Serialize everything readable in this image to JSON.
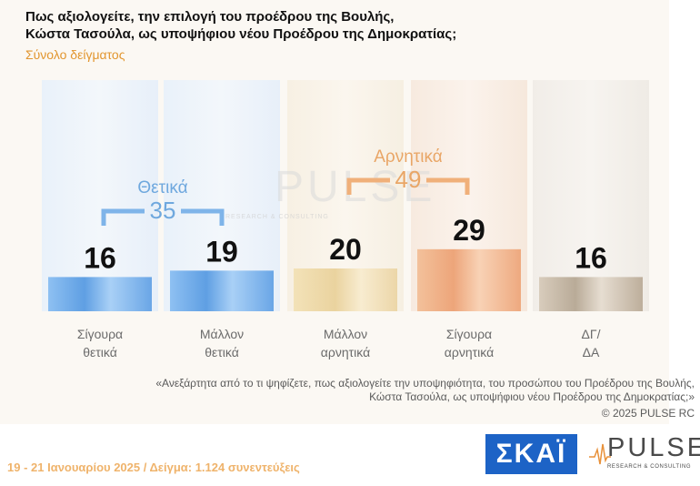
{
  "title_line1": "Πως αξιολογείτε, την επιλογή του προέδρου της Βουλής,",
  "title_line2": "Κώστα Τασούλα, ως υποψήφιου νέου Προέδρου της Δημοκρατίας;",
  "subtitle": "Σύνολο δείγματος",
  "chart_data": {
    "type": "bar",
    "categories": [
      [
        "Σίγουρα",
        "θετικά"
      ],
      [
        "Μάλλον",
        "θετικά"
      ],
      [
        "Μάλλον",
        "αρνητικά"
      ],
      [
        "Σίγουρα",
        "αρνητικά"
      ],
      [
        "ΔΓ/",
        "ΔΑ"
      ]
    ],
    "values": [
      16,
      19,
      20,
      29,
      16
    ],
    "group_positive": {
      "label": "Θετικά",
      "value": 35
    },
    "group_negative": {
      "label": "Αρνητικά",
      "value": 49
    },
    "watermark_word": "PULSE",
    "watermark_sub": "RESEARCH & CONSULTING"
  },
  "colors": {
    "positive": "#7ab0e8",
    "negative": "#f0b58b",
    "neutral": "#cfc3b2",
    "positive_text": "#6fa8de",
    "negative_text": "#e9a667"
  },
  "quote_line1": "«Ανεξάρτητα από το τι ψηφίζετε, πως αξιολογείτε την υποψηφιότητα, του προσώπου του Προέδρου της Βουλής,",
  "quote_line2": "Κώστα Τασούλα, ως υποψήφιου νέου Προέδρου της Δημοκρατίας;»",
  "copyright": "©  2025  PULSE RC",
  "footer": "19 - 21 Ιανουαρίου 2025  /  Δείγμα:  1.124 συνεντεύξεις",
  "logo_skai": "ΣΚΑΪ",
  "logo_pulse": "PULSE",
  "logo_pulse_sub": "RESEARCH & CONSULTING"
}
